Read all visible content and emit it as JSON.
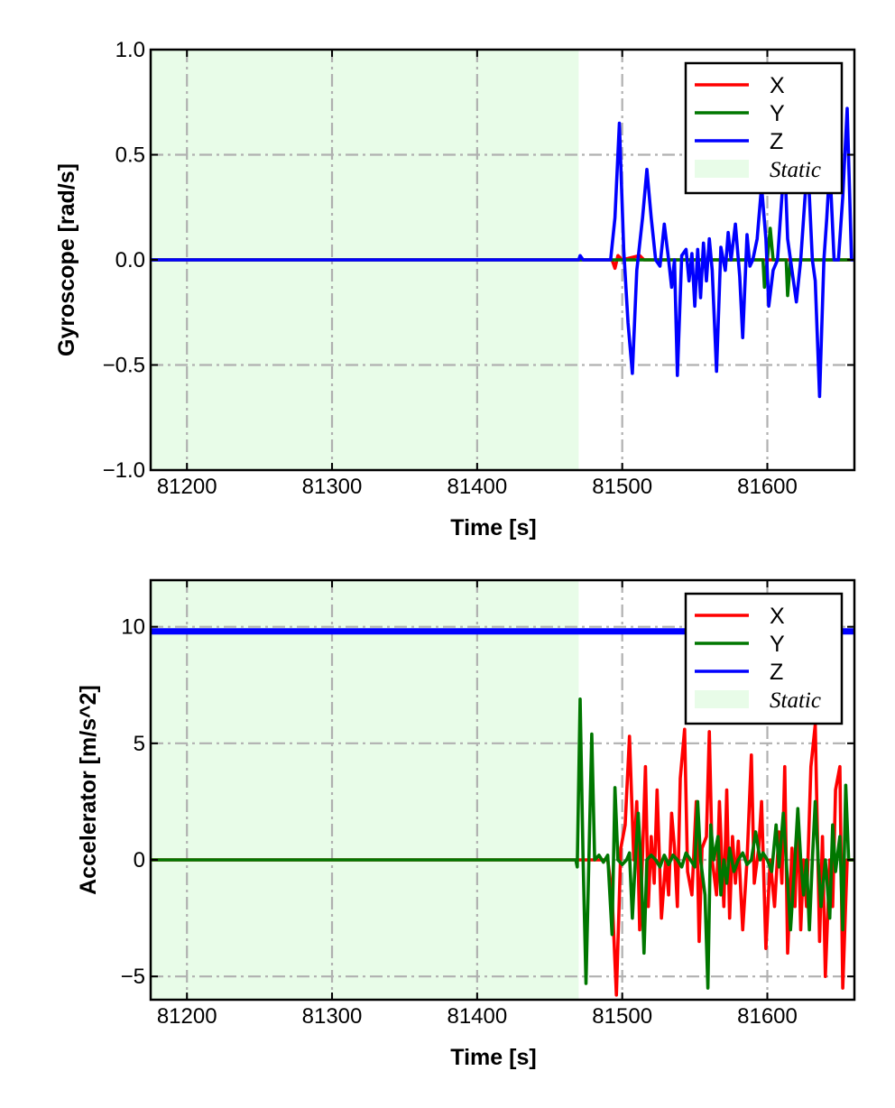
{
  "colors": {
    "X": "#ff0000",
    "Y": "#007700",
    "Z": "#0000ff",
    "static_fill": "#e8fce8",
    "grid": "#b0b0b0"
  },
  "chart_data": [
    {
      "type": "line",
      "xlabel": "Time [s]",
      "ylabel": "Gyroscope [rad/s]",
      "xlim": [
        81175,
        81660
      ],
      "ylim": [
        -1.0,
        1.0
      ],
      "xticks": [
        81200,
        81300,
        81400,
        81500,
        81600
      ],
      "xtick_labels": [
        "81200",
        "81300",
        "81400",
        "81500",
        "81600"
      ],
      "yticks": [
        1.0,
        0.5,
        0.0,
        -0.5,
        -1.0
      ],
      "ytick_labels": [
        "1.0",
        "0.5",
        "0.0",
        "−0.5",
        "−1.0"
      ],
      "grid": true,
      "legend_position": "top-right",
      "static_region": [
        81175,
        81470
      ],
      "legend": [
        "X",
        "Y",
        "Z",
        "Static"
      ],
      "series": [
        {
          "name": "X",
          "color": "#ff0000",
          "points": [
            [
              81175,
              0
            ],
            [
              81493,
              0
            ],
            [
              81495,
              -0.04
            ],
            [
              81497,
              0.02
            ],
            [
              81500,
              0
            ],
            [
              81512,
              0.02
            ],
            [
              81515,
              0
            ],
            [
              81660,
              0
            ]
          ]
        },
        {
          "name": "Y",
          "color": "#007700",
          "points": [
            [
              81175,
              0
            ],
            [
              81597,
              0
            ],
            [
              81598,
              -0.13
            ],
            [
              81600,
              0
            ],
            [
              81602,
              0.15
            ],
            [
              81604,
              0
            ],
            [
              81613,
              0
            ],
            [
              81614,
              -0.17
            ],
            [
              81616,
              0
            ],
            [
              81660,
              0
            ]
          ]
        },
        {
          "name": "Z",
          "color": "#0000ff",
          "points": [
            [
              81175,
              0
            ],
            [
              81470,
              0
            ],
            [
              81471,
              0.02
            ],
            [
              81473,
              0
            ],
            [
              81492,
              0
            ],
            [
              81495,
              0.2
            ],
            [
              81498,
              0.65
            ],
            [
              81501,
              0.05
            ],
            [
              81504,
              -0.3
            ],
            [
              81507,
              -0.54
            ],
            [
              81510,
              -0.05
            ],
            [
              81514,
              0.2
            ],
            [
              81517,
              0.43
            ],
            [
              81520,
              0.2
            ],
            [
              81523,
              0.0
            ],
            [
              81526,
              -0.03
            ],
            [
              81529,
              0.17
            ],
            [
              81532,
              0.0
            ],
            [
              81534,
              -0.13
            ],
            [
              81536,
              0.0
            ],
            [
              81538,
              -0.55
            ],
            [
              81541,
              0.02
            ],
            [
              81544,
              0.05
            ],
            [
              81546,
              -0.1
            ],
            [
              81548,
              0.03
            ],
            [
              81550,
              -0.22
            ],
            [
              81552,
              0.05
            ],
            [
              81554,
              -0.18
            ],
            [
              81556,
              0.08
            ],
            [
              81558,
              -0.1
            ],
            [
              81560,
              0.1
            ],
            [
              81562,
              -0.05
            ],
            [
              81565,
              -0.53
            ],
            [
              81568,
              0.06
            ],
            [
              81571,
              -0.05
            ],
            [
              81573,
              0.13
            ],
            [
              81575,
              0.0
            ],
            [
              81578,
              0.17
            ],
            [
              81581,
              -0.08
            ],
            [
              81583,
              -0.37
            ],
            [
              81586,
              0.12
            ],
            [
              81588,
              -0.03
            ],
            [
              81590,
              0.0
            ],
            [
              81593,
              0.1
            ],
            [
              81596,
              0.35
            ],
            [
              81599,
              0.1
            ],
            [
              81601,
              -0.22
            ],
            [
              81604,
              -0.05
            ],
            [
              81607,
              0.0
            ],
            [
              81610,
              0.3
            ],
            [
              81612,
              0.47
            ],
            [
              81614,
              0.1
            ],
            [
              81617,
              -0.05
            ],
            [
              81620,
              -0.2
            ],
            [
              81623,
              0.0
            ],
            [
              81626,
              0.3
            ],
            [
              81628,
              0.45
            ],
            [
              81631,
              0.0
            ],
            [
              81633,
              -0.1
            ],
            [
              81636,
              -0.65
            ],
            [
              81639,
              0.0
            ],
            [
              81641,
              0.2
            ],
            [
              81643,
              0.45
            ],
            [
              81646,
              0.0
            ],
            [
              81649,
              0.0
            ],
            [
              81652,
              0.3
            ],
            [
              81655,
              0.72
            ],
            [
              81658,
              0.0
            ],
            [
              81660,
              0.0
            ]
          ]
        }
      ]
    },
    {
      "type": "line",
      "xlabel": "Time [s]",
      "ylabel": "Accelerator [m/s^2]",
      "xlim": [
        81175,
        81660
      ],
      "ylim": [
        -6.0,
        12.0
      ],
      "xticks": [
        81200,
        81300,
        81400,
        81500,
        81600
      ],
      "xtick_labels": [
        "81200",
        "81300",
        "81400",
        "81500",
        "81600"
      ],
      "yticks": [
        10,
        5,
        0,
        -5
      ],
      "ytick_labels": [
        "10",
        "5",
        "0",
        "−5"
      ],
      "grid": true,
      "legend_position": "top-right",
      "static_region": [
        81175,
        81470
      ],
      "legend": [
        "X",
        "Y",
        "Z",
        "Static"
      ],
      "series": [
        {
          "name": "X",
          "color": "#ff0000",
          "points": [
            [
              81175,
              0
            ],
            [
              81490,
              0
            ],
            [
              81493,
              -1.5
            ],
            [
              81496,
              -5.8
            ],
            [
              81499,
              0.5
            ],
            [
              81502,
              1.5
            ],
            [
              81505,
              5.3
            ],
            [
              81508,
              0
            ],
            [
              81510,
              2.5
            ],
            [
              81512,
              -3
            ],
            [
              81514,
              0.2
            ],
            [
              81516,
              4
            ],
            [
              81518,
              -2
            ],
            [
              81520,
              1
            ],
            [
              81522,
              -1
            ],
            [
              81524,
              3
            ],
            [
              81527,
              -2.5
            ],
            [
              81530,
              0
            ],
            [
              81532,
              -1.5
            ],
            [
              81534,
              2
            ],
            [
              81536,
              0.5
            ],
            [
              81538,
              -2
            ],
            [
              81540,
              3.5
            ],
            [
              81543,
              5.6
            ],
            [
              81545,
              -0.5
            ],
            [
              81548,
              -1.5
            ],
            [
              81551,
              2.5
            ],
            [
              81553,
              -3.5
            ],
            [
              81555,
              0.5
            ],
            [
              81558,
              1
            ],
            [
              81560,
              5.5
            ],
            [
              81562,
              0
            ],
            [
              81565,
              -1.5
            ],
            [
              81567,
              2.5
            ],
            [
              81570,
              -2
            ],
            [
              81572,
              3
            ],
            [
              81574,
              -2.5
            ],
            [
              81576,
              1
            ],
            [
              81578,
              -1
            ],
            [
              81580,
              0.8
            ],
            [
              81583,
              -3
            ],
            [
              81586,
              0
            ],
            [
              81589,
              4.5
            ],
            [
              81591,
              -1
            ],
            [
              81594,
              0.5
            ],
            [
              81596,
              2.5
            ],
            [
              81599,
              -3.8
            ],
            [
              81602,
              0
            ],
            [
              81605,
              -2
            ],
            [
              81608,
              1.2
            ],
            [
              81610,
              -1
            ],
            [
              81612,
              4
            ],
            [
              81614,
              -4
            ],
            [
              81617,
              0.5
            ],
            [
              81619,
              -2
            ],
            [
              81621,
              2
            ],
            [
              81623,
              -3
            ],
            [
              81625,
              0
            ],
            [
              81627,
              -2
            ],
            [
              81630,
              4
            ],
            [
              81633,
              5.8
            ],
            [
              81636,
              -3.5
            ],
            [
              81638,
              1
            ],
            [
              81640,
              -5
            ],
            [
              81643,
              0
            ],
            [
              81645,
              -2
            ],
            [
              81647,
              3
            ],
            [
              81650,
              4
            ],
            [
              81652,
              -5.5
            ],
            [
              81655,
              0
            ],
            [
              81658,
              0
            ],
            [
              81660,
              0
            ]
          ]
        },
        {
          "name": "Y",
          "color": "#007700",
          "points": [
            [
              81175,
              0
            ],
            [
              81468,
              0
            ],
            [
              81469,
              -0.3
            ],
            [
              81471,
              6.9
            ],
            [
              81473,
              0
            ],
            [
              81475,
              -5.3
            ],
            [
              81477,
              0
            ],
            [
              81479,
              5.4
            ],
            [
              81481,
              0
            ],
            [
              81484,
              0.2
            ],
            [
              81487,
              -0.1
            ],
            [
              81490,
              0.2
            ],
            [
              81493,
              -3.2
            ],
            [
              81495,
              3.1
            ],
            [
              81497,
              0
            ],
            [
              81500,
              -0.2
            ],
            [
              81503,
              0
            ],
            [
              81505,
              0.3
            ],
            [
              81507,
              -2.5
            ],
            [
              81509,
              0
            ],
            [
              81511,
              2
            ],
            [
              81513,
              -0.3
            ],
            [
              81515,
              -4
            ],
            [
              81517,
              0
            ],
            [
              81520,
              0.2
            ],
            [
              81523,
              0
            ],
            [
              81526,
              -0.3
            ],
            [
              81529,
              0.2
            ],
            [
              81532,
              -0.2
            ],
            [
              81535,
              0.2
            ],
            [
              81538,
              0
            ],
            [
              81541,
              -0.3
            ],
            [
              81544,
              0.3
            ],
            [
              81547,
              0
            ],
            [
              81550,
              -0.3
            ],
            [
              81552,
              2.5
            ],
            [
              81554,
              0
            ],
            [
              81557,
              -1.5
            ],
            [
              81559,
              -5.5
            ],
            [
              81561,
              1.5
            ],
            [
              81563,
              0
            ],
            [
              81566,
              1
            ],
            [
              81568,
              -1.5
            ],
            [
              81570,
              0
            ],
            [
              81572,
              -1
            ],
            [
              81574,
              0.5
            ],
            [
              81577,
              -0.5
            ],
            [
              81580,
              0
            ],
            [
              81583,
              0.3
            ],
            [
              81586,
              -0.2
            ],
            [
              81589,
              0
            ],
            [
              81592,
              1.2
            ],
            [
              81595,
              0
            ],
            [
              81597,
              0.3
            ],
            [
              81600,
              0
            ],
            [
              81603,
              -0.5
            ],
            [
              81606,
              1.5
            ],
            [
              81608,
              -0.3
            ],
            [
              81611,
              2
            ],
            [
              81613,
              0
            ],
            [
              81616,
              -3
            ],
            [
              81619,
              0
            ],
            [
              81621,
              2.2
            ],
            [
              81623,
              0
            ],
            [
              81625,
              -1.5
            ],
            [
              81627,
              0
            ],
            [
              81629,
              -3
            ],
            [
              81631,
              0
            ],
            [
              81633,
              2.5
            ],
            [
              81635,
              0
            ],
            [
              81637,
              -2
            ],
            [
              81640,
              0
            ],
            [
              81643,
              -2.5
            ],
            [
              81645,
              1.5
            ],
            [
              81647,
              -0.5
            ],
            [
              81650,
              1
            ],
            [
              81652,
              -3
            ],
            [
              81654,
              3.2
            ],
            [
              81656,
              0
            ],
            [
              81658,
              0
            ],
            [
              81660,
              0
            ]
          ]
        },
        {
          "name": "Z",
          "color": "#0000ff",
          "points": [
            [
              81175,
              9.8
            ],
            [
              81660,
              9.8
            ]
          ]
        }
      ]
    }
  ]
}
